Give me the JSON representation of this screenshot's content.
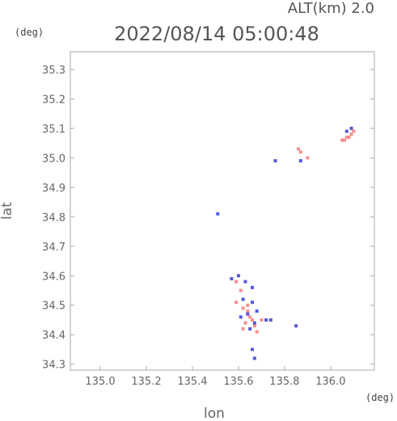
{
  "header": {
    "alt_label": "ALT(km) 2.0",
    "datetime": "2022/08/14 05:00:48",
    "y_unit": "(deg)",
    "x_unit": "(deg)"
  },
  "chart_data": {
    "type": "scatter",
    "xlabel": "lon",
    "ylabel": "lat",
    "xlim": [
      134.87,
      136.19
    ],
    "ylim": [
      34.28,
      35.36
    ],
    "xticks": [
      "135.0",
      "135.2",
      "135.4",
      "135.6",
      "135.8",
      "136.0"
    ],
    "xtick_values": [
      135.0,
      135.2,
      135.4,
      135.6,
      135.8,
      136.0
    ],
    "yticks": [
      "34.3",
      "34.4",
      "34.5",
      "34.6",
      "34.7",
      "34.8",
      "34.9",
      "35.0",
      "35.1",
      "35.2",
      "35.3"
    ],
    "ytick_values": [
      34.3,
      34.4,
      34.5,
      34.6,
      34.7,
      34.8,
      34.9,
      35.0,
      35.1,
      35.2,
      35.3
    ],
    "colors": {
      "positive": "#f47c7c",
      "negative": "#3b3bd6",
      "axis": "#aaaaaa"
    },
    "series": [
      {
        "color_key": "positive",
        "points": [
          [
            136.06,
            35.06
          ],
          [
            136.08,
            35.07
          ],
          [
            136.09,
            35.08
          ],
          [
            136.07,
            35.07
          ],
          [
            136.05,
            35.06
          ],
          [
            136.1,
            35.09
          ],
          [
            135.86,
            35.03
          ],
          [
            135.87,
            35.02
          ],
          [
            135.9,
            35.0
          ],
          [
            135.59,
            34.58
          ],
          [
            135.61,
            34.55
          ],
          [
            135.59,
            34.51
          ],
          [
            135.62,
            34.49
          ],
          [
            135.64,
            34.48
          ],
          [
            135.65,
            34.46
          ],
          [
            135.66,
            34.45
          ],
          [
            135.63,
            34.44
          ],
          [
            135.67,
            34.43
          ],
          [
            135.62,
            34.42
          ],
          [
            135.68,
            34.41
          ],
          [
            135.7,
            34.45
          ],
          [
            135.64,
            34.5
          ]
        ]
      },
      {
        "color_key": "negative",
        "points": [
          [
            136.07,
            35.09
          ],
          [
            136.09,
            35.1
          ],
          [
            135.76,
            34.99
          ],
          [
            135.87,
            34.99
          ],
          [
            135.51,
            34.81
          ],
          [
            135.57,
            34.59
          ],
          [
            135.6,
            34.6
          ],
          [
            135.63,
            34.58
          ],
          [
            135.66,
            34.56
          ],
          [
            135.62,
            34.52
          ],
          [
            135.66,
            34.51
          ],
          [
            135.68,
            34.48
          ],
          [
            135.64,
            34.47
          ],
          [
            135.61,
            34.46
          ],
          [
            135.67,
            34.44
          ],
          [
            135.72,
            34.45
          ],
          [
            135.74,
            34.45
          ],
          [
            135.65,
            34.42
          ],
          [
            135.85,
            34.43
          ],
          [
            135.66,
            34.35
          ],
          [
            135.67,
            34.32
          ]
        ]
      }
    ]
  }
}
